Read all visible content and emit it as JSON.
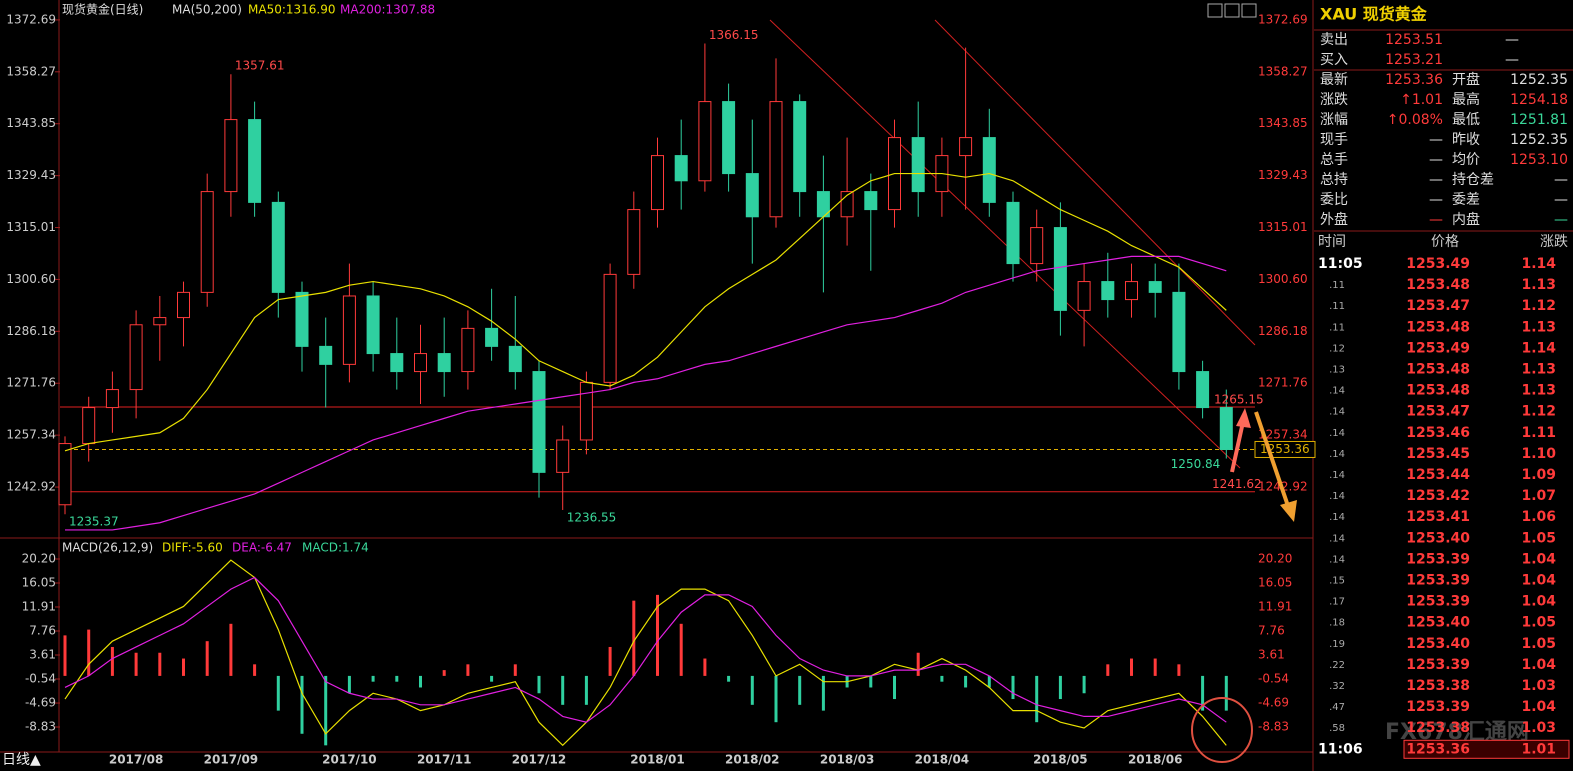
{
  "chart_data": [
    {
      "type": "candlestick",
      "title": "现货黄金(日线)",
      "indicator": "MA(50,200)",
      "categories": [
        null,
        null,
        null,
        "2017/08",
        null,
        null,
        null,
        "2017/09",
        null,
        null,
        null,
        null,
        "2017/10",
        null,
        null,
        null,
        "2017/11",
        null,
        null,
        null,
        "2017/12",
        null,
        null,
        null,
        null,
        "2018/01",
        null,
        null,
        null,
        "2018/02",
        null,
        null,
        null,
        "2018/03",
        null,
        null,
        null,
        "2018/04",
        null,
        null,
        null,
        null,
        "2018/05",
        null,
        null,
        null,
        "2018/06",
        null,
        null,
        null
      ],
      "open": [
        1238,
        1255,
        1265,
        1270,
        1288,
        1290,
        1297,
        1325,
        1345,
        1322,
        1297,
        1282,
        1277,
        1296,
        1280,
        1275,
        1280,
        1275,
        1287,
        1282,
        1275,
        1247,
        1256,
        1272,
        1302,
        1320,
        1335,
        1328,
        1350,
        1330,
        1318,
        1350,
        1325,
        1318,
        1325,
        1320,
        1340,
        1325,
        1335,
        1340,
        1322,
        1305,
        1315,
        1292,
        1300,
        1295,
        1300,
        1297,
        1275,
        1265
      ],
      "high": [
        1257,
        1268,
        1275,
        1292,
        1296,
        1300,
        1330,
        1357.61,
        1350,
        1325,
        1300,
        1290,
        1305,
        1300,
        1290,
        1288,
        1290,
        1292,
        1298,
        1296,
        1278,
        1260,
        1275,
        1305,
        1325,
        1340,
        1345,
        1366.15,
        1355,
        1345,
        1362,
        1352,
        1335,
        1340,
        1330,
        1345,
        1350,
        1340,
        1365,
        1348,
        1325,
        1320,
        1322,
        1305,
        1308,
        1305,
        1305,
        1305,
        1278,
        1270
      ],
      "low": [
        1235.37,
        1250,
        1258,
        1262,
        1278,
        1282,
        1293,
        1318,
        1318,
        1290,
        1275,
        1265,
        1272,
        1275,
        1270,
        1266,
        1268,
        1270,
        1278,
        1270,
        1240,
        1236.55,
        1252,
        1270,
        1298,
        1315,
        1320,
        1325,
        1325,
        1305,
        1315,
        1318,
        1297,
        1310,
        1303,
        1315,
        1318,
        1318,
        1320,
        1318,
        1300,
        1300,
        1285,
        1282,
        1290,
        1290,
        1290,
        1270,
        1262,
        1250.84
      ],
      "close": [
        1255,
        1265,
        1270,
        1288,
        1290,
        1297,
        1325,
        1345,
        1322,
        1297,
        1282,
        1277,
        1296,
        1280,
        1275,
        1280,
        1275,
        1287,
        1282,
        1275,
        1247,
        1256,
        1272,
        1302,
        1320,
        1335,
        1328,
        1350,
        1330,
        1318,
        1350,
        1325,
        1318,
        1325,
        1320,
        1340,
        1325,
        1335,
        1340,
        1322,
        1305,
        1315,
        1292,
        1300,
        1295,
        1300,
        1297,
        1275,
        1265,
        1253.36
      ],
      "up_color": "#ff3a3a",
      "down_color": "#2fd0a0",
      "series": [
        {
          "name": "MA50:1316.90",
          "color": "#e8e000",
          "values": [
            1253,
            1255,
            1256,
            1257,
            1258,
            1262,
            1270,
            1280,
            1290,
            1295,
            1296,
            1297,
            1299,
            1300,
            1299,
            1298,
            1296,
            1293,
            1289,
            1284,
            1278,
            1275,
            1272,
            1271,
            1274,
            1279,
            1286,
            1293,
            1298,
            1302,
            1306,
            1312,
            1318,
            1324,
            1328,
            1330,
            1330,
            1330,
            1329,
            1330,
            1328,
            1324,
            1320,
            1317,
            1314,
            1310,
            1307,
            1304,
            1298,
            1292
          ]
        },
        {
          "name": "MA200:1307.88",
          "color": "#e020e0",
          "values": [
            1231,
            1231,
            1231,
            1232,
            1233,
            1235,
            1237,
            1239,
            1241,
            1244,
            1247,
            1250,
            1253,
            1256,
            1258,
            1260,
            1262,
            1264,
            1265,
            1266,
            1267,
            1268,
            1269,
            1270,
            1272,
            1273,
            1275,
            1277,
            1278,
            1280,
            1282,
            1284,
            1286,
            1288,
            1289,
            1290,
            1292,
            1294,
            1297,
            1299,
            1301,
            1303,
            1304,
            1305,
            1306,
            1307,
            1307,
            1307,
            1305,
            1303
          ]
        }
      ],
      "levels": [
        {
          "value": 1265.15,
          "color": "#e02020"
        },
        {
          "value": 1241.62,
          "color": "#e02020"
        }
      ],
      "ylim": [
        1229.6,
        1376.0
      ],
      "yticks": [
        1372.69,
        1358.27,
        1343.85,
        1329.43,
        1315.01,
        {
          "value": 1300.6,
          "label": "1300.60"
        },
        1286.18,
        1271.76,
        1257.34,
        1242.92
      ]
    },
    {
      "type": "macd",
      "title": "MACD(26,12,9)",
      "series": [
        {
          "name": "DIFF:-5.60",
          "color": "#e8e000",
          "values": [
            -4,
            2,
            6,
            8,
            10,
            12,
            16,
            20,
            17,
            8,
            -3,
            -10,
            -6,
            -3,
            -4,
            -6,
            -5,
            -3,
            -2,
            -1,
            -8,
            -12,
            -8,
            -2,
            6,
            12,
            15,
            15,
            13,
            7,
            0,
            2,
            -1,
            -1,
            0,
            2,
            1,
            3,
            1,
            -2,
            -6,
            -6,
            -8,
            -9,
            -6,
            -5,
            -4,
            -3,
            -7,
            -12
          ]
        },
        {
          "name": "DEA:-6.47",
          "color": "#e020e0",
          "values": [
            -2,
            0,
            3,
            5,
            7,
            9,
            12,
            15,
            17,
            13,
            6,
            -1,
            -3,
            -4,
            -4,
            -5,
            -5,
            -4,
            -3,
            -2,
            -4,
            -7,
            -8,
            -5,
            0,
            6,
            11,
            14,
            14,
            12,
            7,
            3,
            1,
            0,
            0,
            1,
            1,
            2,
            2,
            0,
            -3,
            -5,
            -6,
            -7,
            -7,
            -6,
            -5,
            -4,
            -5,
            -8
          ]
        }
      ],
      "histogram": {
        "name": "MACD:1.74",
        "up_color": "#ff3a3a",
        "down_color": "#2fd0a0",
        "values": [
          7,
          8,
          5,
          4,
          4,
          3,
          6,
          9,
          2,
          -6,
          -10,
          -12,
          -3,
          -1,
          -1,
          -2,
          1,
          2,
          -1,
          2,
          -3,
          -5,
          -5,
          5,
          13,
          14,
          9,
          3,
          -1,
          -5,
          -8,
          -5,
          -6,
          -2,
          -2,
          -4,
          4,
          -1,
          -2,
          -2,
          -4,
          -8,
          -4,
          -3,
          2,
          3,
          3,
          2,
          -6,
          -6
        ]
      },
      "ylim": [
        -13.15,
        23.31
      ],
      "yticks": [
        {
          "value": 20.2,
          "label": "20.20"
        },
        16.05,
        11.91,
        7.76,
        3.61,
        -0.54,
        -4.69,
        -8.83
      ]
    }
  ],
  "period_label": "日线▲",
  "watermark": "FX678汇通网",
  "quote": {
    "title": "XAU 现货黄金",
    "rows": [
      [
        "卖出",
        "1253.51",
        "—"
      ],
      [
        "买入",
        "1253.21",
        "—"
      ],
      [
        "最新",
        "1253.36",
        "开盘",
        "1252.35"
      ],
      [
        "涨跌",
        "↑1.01",
        "最高",
        "1254.18"
      ],
      [
        "涨幅",
        "↑0.08%",
        "最低",
        "1251.81"
      ],
      [
        "现手",
        "—",
        "昨收",
        "1252.35"
      ],
      [
        "总手",
        "—",
        "均价",
        "1253.10"
      ],
      [
        "总持",
        "—",
        "持仓差",
        "—"
      ],
      [
        "委比",
        "—",
        "委差",
        "—"
      ],
      [
        "外盘",
        "—",
        "内盘",
        "—"
      ]
    ]
  },
  "ticks": {
    "columns": [
      "时间",
      "价格",
      "涨跌"
    ],
    "rows": [
      [
        "11:05",
        "1253.49",
        "1.14"
      ],
      [
        ".11",
        "1253.48",
        "1.13"
      ],
      [
        ".11",
        "1253.47",
        "1.12"
      ],
      [
        ".11",
        "1253.48",
        "1.13"
      ],
      [
        ".12",
        "1253.49",
        "1.14"
      ],
      [
        ".13",
        "1253.48",
        "1.13"
      ],
      [
        ".14",
        "1253.48",
        "1.13"
      ],
      [
        ".14",
        "1253.47",
        "1.12"
      ],
      [
        ".14",
        "1253.46",
        "1.11"
      ],
      [
        ".14",
        "1253.45",
        "1.10"
      ],
      [
        ".14",
        "1253.44",
        "1.09"
      ],
      [
        ".14",
        "1253.42",
        "1.07"
      ],
      [
        ".14",
        "1253.41",
        "1.06"
      ],
      [
        ".14",
        "1253.40",
        "1.05"
      ],
      [
        ".14",
        "1253.39",
        "1.04"
      ],
      [
        ".15",
        "1253.39",
        "1.04"
      ],
      [
        ".17",
        "1253.39",
        "1.04"
      ],
      [
        ".18",
        "1253.40",
        "1.05"
      ],
      [
        ".19",
        "1253.40",
        "1.05"
      ],
      [
        ".22",
        "1253.39",
        "1.04"
      ],
      [
        ".32",
        "1253.38",
        "1.03"
      ],
      [
        ".47",
        "1253.39",
        "1.04"
      ],
      [
        ".58",
        "1253.38",
        "1.03"
      ],
      [
        "11:06",
        "1253.36",
        "1.01"
      ]
    ]
  }
}
